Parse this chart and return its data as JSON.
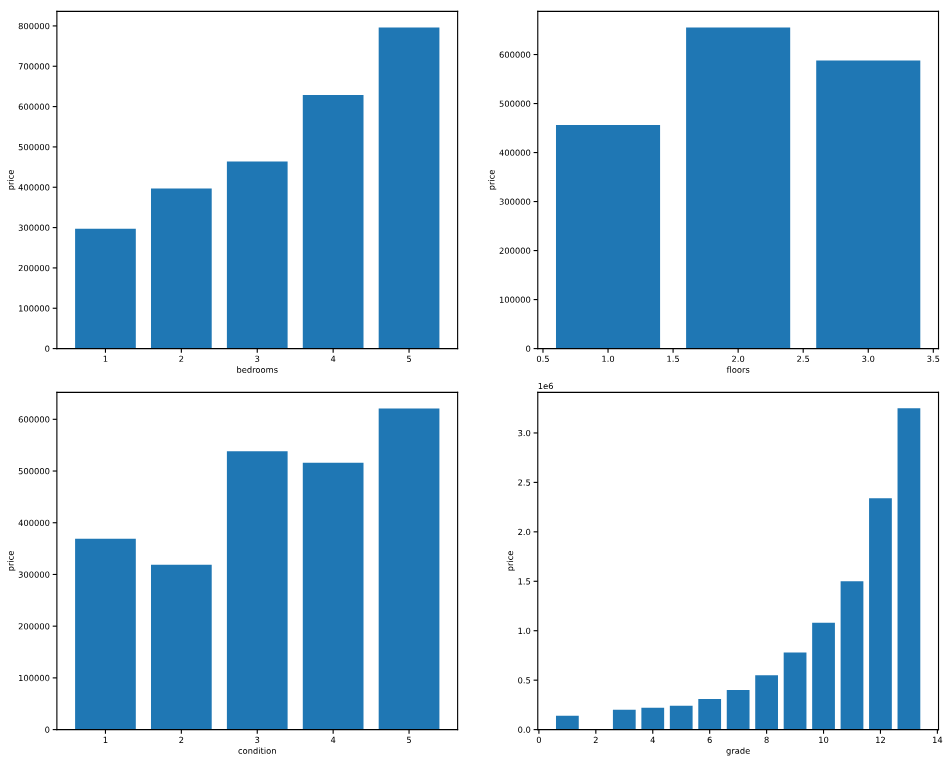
{
  "chart_data": [
    {
      "type": "bar",
      "xlabel": "bedrooms",
      "ylabel": "price",
      "categories": [
        "1",
        "2",
        "3",
        "4",
        "5"
      ],
      "color": "#1f77b4",
      "values": [
        297000,
        397000,
        464000,
        629000,
        796000
      ],
      "ylim": [
        0,
        836000
      ],
      "yticks": [
        0,
        100000,
        200000,
        300000,
        400000,
        500000,
        600000,
        700000,
        800000
      ]
    },
    {
      "type": "bar",
      "xlabel": "floors",
      "ylabel": "price",
      "x": [
        1,
        2,
        3
      ],
      "color": "#1f77b4",
      "values": [
        456000,
        655000,
        588000
      ],
      "xlim": [
        0.46,
        3.54
      ],
      "xticks": [
        {
          "value": 0.5,
          "label": "0.5"
        },
        {
          "value": 1,
          "label": "1.0"
        },
        {
          "value": 1.5,
          "label": "1.5"
        },
        {
          "value": 2,
          "label": "2.0"
        },
        {
          "value": 2.5,
          "label": "2.5"
        },
        {
          "value": 3,
          "label": "3.0"
        },
        {
          "value": 3.5,
          "label": "3.5"
        }
      ],
      "ylim": [
        0,
        688000
      ],
      "yticks": [
        0,
        100000,
        200000,
        300000,
        400000,
        500000,
        600000
      ]
    },
    {
      "type": "bar",
      "xlabel": "condition",
      "ylabel": "price",
      "categories": [
        "1",
        "2",
        "3",
        "4",
        "5"
      ],
      "color": "#1f77b4",
      "values": [
        369000,
        319000,
        538000,
        516000,
        621000
      ],
      "ylim": [
        0,
        652000
      ],
      "yticks": [
        0,
        100000,
        200000,
        300000,
        400000,
        500000,
        600000
      ]
    },
    {
      "type": "bar",
      "xlabel": "grade",
      "ylabel": "price",
      "x": [
        1,
        3,
        4,
        5,
        6,
        7,
        8,
        9,
        10,
        11,
        12,
        13
      ],
      "color": "#1f77b4",
      "values": [
        0.14,
        0.2,
        0.22,
        0.24,
        0.31,
        0.4,
        0.55,
        0.78,
        1.08,
        1.5,
        2.34,
        3.25
      ],
      "xlim": [
        -0.04,
        14.04
      ],
      "xticks": [
        0,
        2,
        4,
        6,
        8,
        10,
        12,
        14
      ],
      "ylim": [
        0,
        3.41
      ],
      "yticks": [
        {
          "value": 0,
          "label": "0.0"
        },
        {
          "value": 0.5,
          "label": "0.5"
        },
        {
          "value": 1,
          "label": "1.0"
        },
        {
          "value": 1.5,
          "label": "1.5"
        },
        {
          "value": 2,
          "label": "2.0"
        },
        {
          "value": 2.5,
          "label": "2.5"
        },
        {
          "value": 3,
          "label": "3.0"
        }
      ],
      "annotations": [
        "1e6"
      ]
    }
  ]
}
